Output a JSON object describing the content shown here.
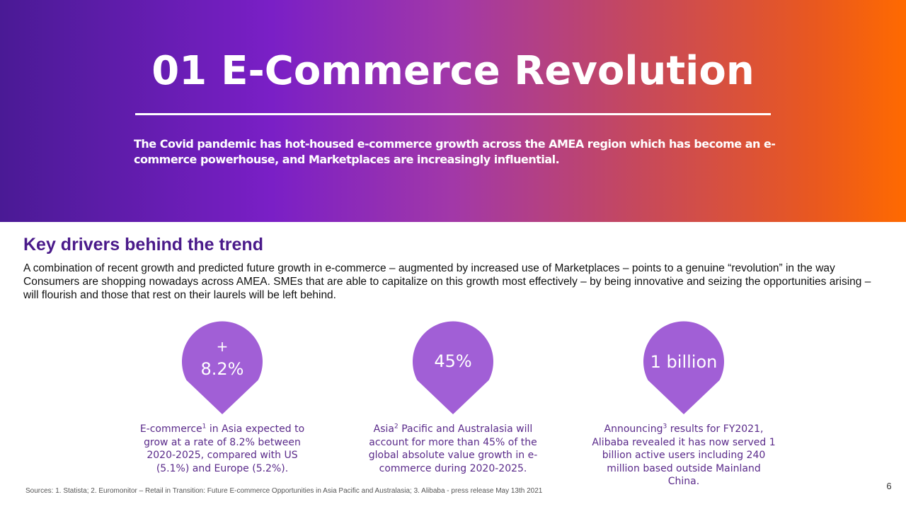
{
  "hero": {
    "number": "01",
    "title": "E-Commerce Revolution",
    "subtitle": "The Covid pandemic has hot-housed e-commerce growth across the AMEA region which has become an e-commerce powerhouse, and Marketplaces are increasingly influential."
  },
  "section": {
    "heading": "Key drivers behind the trend",
    "intro": "A combination of recent growth and predicted future growth in e-commerce – augmented by increased use of Marketplaces – points to a genuine “revolution” in the way Consumers are shopping nowadays across AMEA. SMEs that are able to capitalize on this growth most effectively – by being innovative and seizing the opportunities arising – will flourish and those that rest on their laurels will be left behind."
  },
  "stats": [
    {
      "prefix": "+",
      "value": "8.2%",
      "lead": "E-commerce",
      "ref": "1",
      "desc": " in Asia expected to grow at a rate of 8.2% between 2020-2025, compared with US (5.1%) and Europe (5.2%)."
    },
    {
      "prefix": "",
      "value": "45%",
      "lead": "Asia",
      "ref": "2",
      "desc": " Pacific and Australasia will account for more than 45% of the global absolute value growth in e-commerce during 2020-2025."
    },
    {
      "prefix": "",
      "value": "1 billion",
      "lead": "Announcing",
      "ref": "3",
      "desc": " results for FY2021, Alibaba revealed it has now served 1 billion active users including 240 million based outside Mainland China."
    }
  ],
  "footer": {
    "sources": "Sources: 1. Statista; 2. Euromonitor – Retail in Transition: Future E-commerce Opportunities in Asia Pacific and Australasia; 3. Alibaba - press release May 13th 2021",
    "page_number": "6"
  },
  "colors": {
    "pin": "#a15fd6",
    "heading": "#4a1a8a",
    "desc": "#5a2a8a"
  },
  "icons": {
    "pin": "map-pin-icon"
  }
}
